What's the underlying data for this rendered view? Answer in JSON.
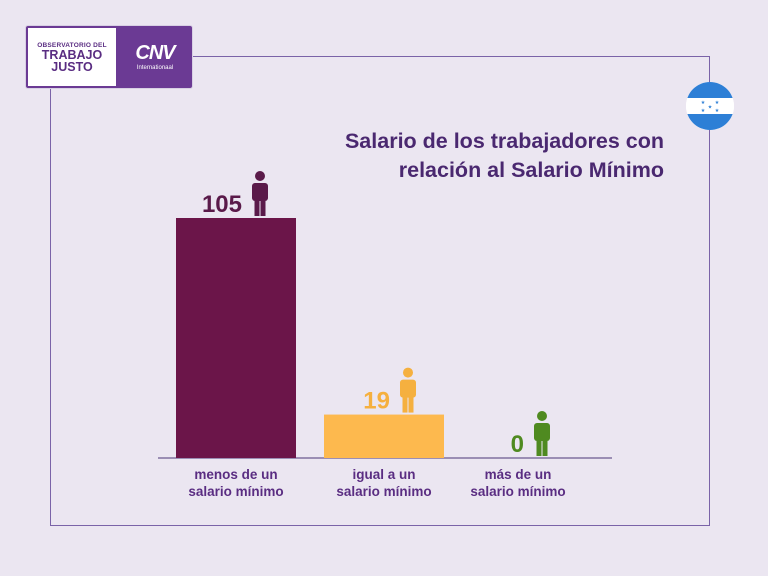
{
  "logo": {
    "line1": "OBSERVATORIO DEL",
    "line2": "TRABAJO",
    "line3": "JUSTO",
    "partner_mark": "CNV",
    "partner_sub": "Internationaal"
  },
  "flag": {
    "country_icon": "honduras-flag-icon"
  },
  "title": {
    "line1": "Salario de los trabajadores con",
    "line2": "relación al Salario Mínimo"
  },
  "chart_data": {
    "type": "bar",
    "title": "Salario de los trabajadores con relación al Salario Mínimo",
    "categories": [
      [
        "menos de un",
        "salario mínimo"
      ],
      [
        "igual a un",
        "salario mínimo"
      ],
      [
        "más de un",
        "salario mínimo"
      ]
    ],
    "values": [
      105,
      19,
      0
    ],
    "colors": [
      "#6b1549",
      "#fdb94e",
      "#4f8a20"
    ],
    "value_label_colors": [
      "#5a1a4a",
      "#f5b03f",
      "#4f8a20"
    ],
    "ylim": [
      0,
      105
    ],
    "grid": false,
    "legend": "none"
  },
  "colors": {
    "background": "#ebe6f1",
    "frame": "#7a63a8",
    "title": "#4a2870",
    "brand": "#6b3a94"
  }
}
